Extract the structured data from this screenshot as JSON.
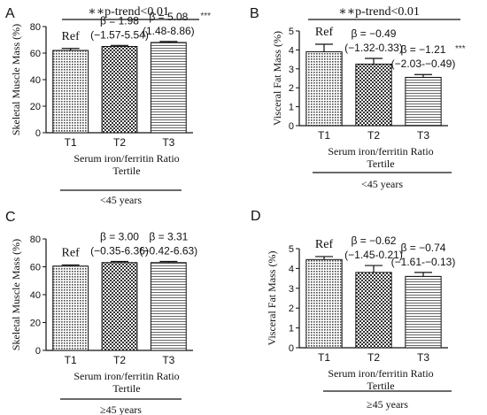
{
  "chart_data": [
    {
      "type": "bar",
      "panel_letter": "A",
      "ylabel": "Skeletal Muscle Mass (%)",
      "xlabel": "Serum iron/ferritin Ratio",
      "xlabel2": "Tertile",
      "group_label": "<45 years",
      "trend_label": "∗∗p-trend<0.01",
      "ylim": [
        0,
        80
      ],
      "yticks": [
        0,
        20,
        40,
        60,
        80
      ],
      "categories": [
        "T1",
        "T2",
        "T3"
      ],
      "values": [
        62,
        65,
        68
      ],
      "errors": [
        1.5,
        0.8,
        0.8
      ],
      "annotations": [
        {
          "line1": "Ref",
          "line2": "",
          "sig": ""
        },
        {
          "line1": "β = 1.98",
          "line2": "(−1.57-5.54)",
          "sig": ""
        },
        {
          "line1": "β = 5.08",
          "line2": "(1.48-8.86)",
          "sig": "***"
        }
      ]
    },
    {
      "type": "bar",
      "panel_letter": "B",
      "ylabel": "Visceral Fat Mass (%)",
      "xlabel": "Serum iron/ferritin Ratio",
      "xlabel2": "Tertile",
      "group_label": "<45 years",
      "trend_label": "∗∗p-trend<0.01",
      "ylim": [
        0,
        5
      ],
      "yticks": [
        0,
        1,
        2,
        3,
        4,
        5
      ],
      "categories": [
        "T1",
        "T2",
        "T3"
      ],
      "values": [
        3.9,
        3.25,
        2.55
      ],
      "errors": [
        0.4,
        0.3,
        0.15
      ],
      "annotations": [
        {
          "line1": "Ref",
          "line2": "",
          "sig": ""
        },
        {
          "line1": "β = −0.49",
          "line2": "(−1.32-0.33)",
          "sig": ""
        },
        {
          "line1": "β = −1.21",
          "line2": "(−2.03-−0.49)",
          "sig": "***"
        }
      ]
    },
    {
      "type": "bar",
      "panel_letter": "C",
      "ylabel": "Skeletal Muscle Mass (%)",
      "xlabel": "Serum iron/ferritin Ratio",
      "xlabel2": "Tertile",
      "group_label": "≥45 years",
      "trend_label": "",
      "ylim": [
        0,
        80
      ],
      "yticks": [
        0,
        20,
        40,
        60,
        80
      ],
      "categories": [
        "T1",
        "T2",
        "T3"
      ],
      "values": [
        60.5,
        63,
        63
      ],
      "errors": [
        0.8,
        0.8,
        0.8
      ],
      "annotations": [
        {
          "line1": "Ref",
          "line2": "",
          "sig": ""
        },
        {
          "line1": "β = 3.00",
          "line2": "(−0.35-6.36)",
          "sig": ""
        },
        {
          "line1": "β = 3.31",
          "line2": "(−0.42-6.63)",
          "sig": ""
        }
      ]
    },
    {
      "type": "bar",
      "panel_letter": "D",
      "ylabel": "Visceral Fat Mass (%)",
      "xlabel": "Serum iron/ferritin Ratio",
      "xlabel2": "Tertile",
      "group_label": "≥45 years",
      "trend_label": "",
      "ylim": [
        0,
        5
      ],
      "yticks": [
        0,
        1,
        2,
        3,
        4,
        5
      ],
      "categories": [
        "T1",
        "T2",
        "T3"
      ],
      "values": [
        4.45,
        3.8,
        3.6
      ],
      "errors": [
        0.15,
        0.35,
        0.2
      ],
      "annotations": [
        {
          "line1": "Ref",
          "line2": "",
          "sig": ""
        },
        {
          "line1": "β = −0.62",
          "line2": "(−1.45-0.21)",
          "sig": ""
        },
        {
          "line1": "β = −0.74",
          "line2": "(−1.61-−0.13)",
          "sig": ""
        }
      ]
    }
  ]
}
